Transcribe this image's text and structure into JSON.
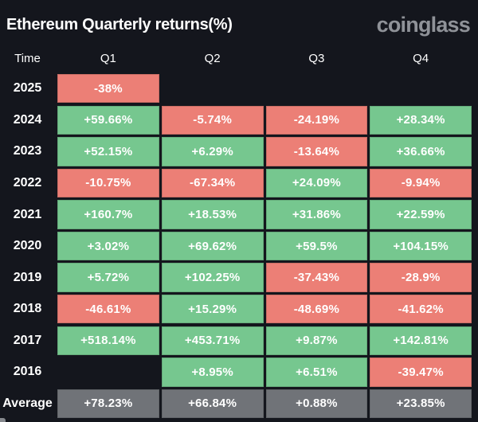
{
  "header": {
    "title": "Ethereum Quarterly returns(%)",
    "logo": "coinglass"
  },
  "colors": {
    "background": "#14161d",
    "positive": "#76c78f",
    "negative": "#ec7f76",
    "average": "#707378",
    "text": "#ffffff",
    "logo": "#8f9298"
  },
  "table": {
    "columns": [
      "Time",
      "Q1",
      "Q2",
      "Q3",
      "Q4"
    ],
    "rows": [
      {
        "time": "2025",
        "cells": [
          {
            "value": "-38%",
            "type": "neg"
          },
          {
            "value": "",
            "type": "empty"
          },
          {
            "value": "",
            "type": "empty"
          },
          {
            "value": "",
            "type": "empty"
          }
        ]
      },
      {
        "time": "2024",
        "cells": [
          {
            "value": "+59.66%",
            "type": "pos"
          },
          {
            "value": "-5.74%",
            "type": "neg"
          },
          {
            "value": "-24.19%",
            "type": "neg"
          },
          {
            "value": "+28.34%",
            "type": "pos"
          }
        ]
      },
      {
        "time": "2023",
        "cells": [
          {
            "value": "+52.15%",
            "type": "pos"
          },
          {
            "value": "+6.29%",
            "type": "pos"
          },
          {
            "value": "-13.64%",
            "type": "neg"
          },
          {
            "value": "+36.66%",
            "type": "pos"
          }
        ]
      },
      {
        "time": "2022",
        "cells": [
          {
            "value": "-10.75%",
            "type": "neg"
          },
          {
            "value": "-67.34%",
            "type": "neg"
          },
          {
            "value": "+24.09%",
            "type": "pos"
          },
          {
            "value": "-9.94%",
            "type": "neg"
          }
        ]
      },
      {
        "time": "2021",
        "cells": [
          {
            "value": "+160.7%",
            "type": "pos"
          },
          {
            "value": "+18.53%",
            "type": "pos"
          },
          {
            "value": "+31.86%",
            "type": "pos"
          },
          {
            "value": "+22.59%",
            "type": "pos"
          }
        ]
      },
      {
        "time": "2020",
        "cells": [
          {
            "value": "+3.02%",
            "type": "pos"
          },
          {
            "value": "+69.62%",
            "type": "pos"
          },
          {
            "value": "+59.5%",
            "type": "pos"
          },
          {
            "value": "+104.15%",
            "type": "pos"
          }
        ]
      },
      {
        "time": "2019",
        "cells": [
          {
            "value": "+5.72%",
            "type": "pos"
          },
          {
            "value": "+102.25%",
            "type": "pos"
          },
          {
            "value": "-37.43%",
            "type": "neg"
          },
          {
            "value": "-28.9%",
            "type": "neg"
          }
        ]
      },
      {
        "time": "2018",
        "cells": [
          {
            "value": "-46.61%",
            "type": "neg"
          },
          {
            "value": "+15.29%",
            "type": "pos"
          },
          {
            "value": "-48.69%",
            "type": "neg"
          },
          {
            "value": "-41.62%",
            "type": "neg"
          }
        ]
      },
      {
        "time": "2017",
        "cells": [
          {
            "value": "+518.14%",
            "type": "pos"
          },
          {
            "value": "+453.71%",
            "type": "pos"
          },
          {
            "value": "+9.87%",
            "type": "pos"
          },
          {
            "value": "+142.81%",
            "type": "pos"
          }
        ]
      },
      {
        "time": "2016",
        "cells": [
          {
            "value": "",
            "type": "empty"
          },
          {
            "value": "+8.95%",
            "type": "pos"
          },
          {
            "value": "+6.51%",
            "type": "pos"
          },
          {
            "value": "-39.47%",
            "type": "neg"
          }
        ]
      },
      {
        "time": "Average",
        "cells": [
          {
            "value": "+78.23%",
            "type": "avg"
          },
          {
            "value": "+66.84%",
            "type": "avg"
          },
          {
            "value": "+0.88%",
            "type": "avg"
          },
          {
            "value": "+23.85%",
            "type": "avg"
          }
        ]
      }
    ]
  },
  "chart_data": {
    "type": "table",
    "title": "Ethereum Quarterly returns(%)",
    "watermark": "coinglass",
    "columns": [
      "Time",
      "Q1",
      "Q2",
      "Q3",
      "Q4"
    ],
    "unit": "percent",
    "rows": [
      {
        "time": "2025",
        "values": [
          -38,
          null,
          null,
          null
        ]
      },
      {
        "time": "2024",
        "values": [
          59.66,
          -5.74,
          -24.19,
          28.34
        ]
      },
      {
        "time": "2023",
        "values": [
          52.15,
          6.29,
          -13.64,
          36.66
        ]
      },
      {
        "time": "2022",
        "values": [
          -10.75,
          -67.34,
          24.09,
          -9.94
        ]
      },
      {
        "time": "2021",
        "values": [
          160.7,
          18.53,
          31.86,
          22.59
        ]
      },
      {
        "time": "2020",
        "values": [
          3.02,
          69.62,
          59.5,
          104.15
        ]
      },
      {
        "time": "2019",
        "values": [
          5.72,
          102.25,
          -37.43,
          -28.9
        ]
      },
      {
        "time": "2018",
        "values": [
          -46.61,
          15.29,
          -48.69,
          -41.62
        ]
      },
      {
        "time": "2017",
        "values": [
          518.14,
          453.71,
          9.87,
          142.81
        ]
      },
      {
        "time": "2016",
        "values": [
          null,
          8.95,
          6.51,
          -39.47
        ]
      },
      {
        "time": "Average",
        "values": [
          78.23,
          66.84,
          0.88,
          23.85
        ]
      }
    ],
    "color_coding": "positive=green, negative=red, average-row=gray, missing=blank"
  }
}
